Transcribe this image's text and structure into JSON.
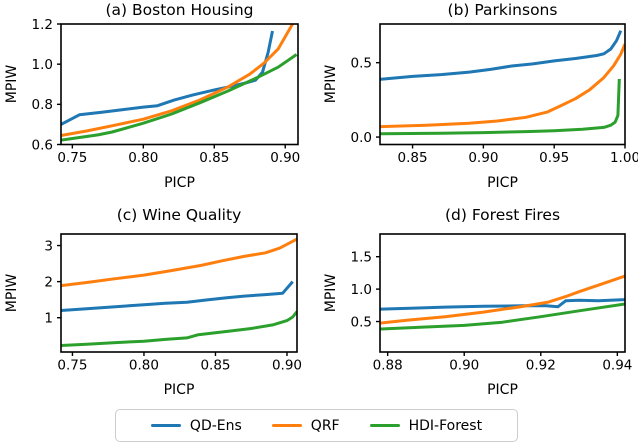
{
  "figure": {
    "background": "#ffffff",
    "series_colors": {
      "QD-Ens": "#1f77b4",
      "QRF": "#ff7f0e",
      "HDI-Forest": "#2ca02c"
    },
    "axis_color": "#000000"
  },
  "legend": {
    "entries": [
      {
        "label": "QD-Ens",
        "color": "#1f77b4"
      },
      {
        "label": "QRF",
        "color": "#ff7f0e"
      },
      {
        "label": "HDI-Forest",
        "color": "#2ca02c"
      }
    ]
  },
  "chart_data": [
    {
      "id": "a",
      "type": "line",
      "title": "(a) Boston Housing",
      "xlabel": "PICP",
      "ylabel": "MPIW",
      "xlim": [
        0.742,
        0.909
      ],
      "ylim": [
        0.6,
        1.2
      ],
      "grid": false,
      "xticks": [
        {
          "v": 0.75,
          "label": "0.75"
        },
        {
          "v": 0.8,
          "label": "0.80"
        },
        {
          "v": 0.85,
          "label": "0.85"
        },
        {
          "v": 0.9,
          "label": "0.90"
        }
      ],
      "yticks": [
        {
          "v": 0.6,
          "label": "0.6"
        },
        {
          "v": 0.8,
          "label": "0.8"
        },
        {
          "v": 1.0,
          "label": "1.0"
        },
        {
          "v": 1.2,
          "label": "1.2"
        }
      ],
      "series": [
        {
          "name": "QD-Ens",
          "points": [
            [
              0.742,
              0.7
            ],
            [
              0.755,
              0.748
            ],
            [
              0.77,
              0.76
            ],
            [
              0.785,
              0.773
            ],
            [
              0.8,
              0.786
            ],
            [
              0.81,
              0.793
            ],
            [
              0.822,
              0.822
            ],
            [
              0.835,
              0.847
            ],
            [
              0.85,
              0.872
            ],
            [
              0.862,
              0.89
            ],
            [
              0.872,
              0.906
            ],
            [
              0.879,
              0.92
            ],
            [
              0.884,
              0.96
            ],
            [
              0.888,
              1.06
            ],
            [
              0.891,
              1.165
            ]
          ]
        },
        {
          "name": "QRF",
          "points": [
            [
              0.742,
              0.645
            ],
            [
              0.76,
              0.667
            ],
            [
              0.78,
              0.696
            ],
            [
              0.8,
              0.726
            ],
            [
              0.82,
              0.768
            ],
            [
              0.84,
              0.822
            ],
            [
              0.86,
              0.888
            ],
            [
              0.875,
              0.95
            ],
            [
              0.885,
              1.005
            ],
            [
              0.895,
              1.075
            ],
            [
              0.906,
              1.21
            ]
          ]
        },
        {
          "name": "HDI-Forest",
          "points": [
            [
              0.742,
              0.622
            ],
            [
              0.755,
              0.635
            ],
            [
              0.768,
              0.648
            ],
            [
              0.778,
              0.662
            ],
            [
              0.8,
              0.706
            ],
            [
              0.82,
              0.752
            ],
            [
              0.84,
              0.808
            ],
            [
              0.86,
              0.868
            ],
            [
              0.88,
              0.932
            ],
            [
              0.895,
              0.985
            ],
            [
              0.908,
              1.048
            ]
          ]
        }
      ]
    },
    {
      "id": "b",
      "type": "line",
      "title": "(b) Parkinsons",
      "xlabel": "PICP",
      "ylabel": "MPIW",
      "xlim": [
        0.827,
        1.0
      ],
      "ylim": [
        -0.05,
        0.76
      ],
      "grid": false,
      "xticks": [
        {
          "v": 0.85,
          "label": "0.85"
        },
        {
          "v": 0.9,
          "label": "0.90"
        },
        {
          "v": 0.95,
          "label": "0.95"
        },
        {
          "v": 1.0,
          "label": "1.00"
        }
      ],
      "yticks": [
        {
          "v": 0.0,
          "label": "0.0"
        },
        {
          "v": 0.5,
          "label": "0.5"
        }
      ],
      "series": [
        {
          "name": "QD-Ens",
          "points": [
            [
              0.827,
              0.388
            ],
            [
              0.85,
              0.408
            ],
            [
              0.87,
              0.42
            ],
            [
              0.89,
              0.437
            ],
            [
              0.905,
              0.455
            ],
            [
              0.92,
              0.478
            ],
            [
              0.935,
              0.492
            ],
            [
              0.95,
              0.512
            ],
            [
              0.965,
              0.528
            ],
            [
              0.98,
              0.548
            ],
            [
              0.985,
              0.56
            ],
            [
              0.99,
              0.592
            ],
            [
              0.994,
              0.648
            ],
            [
              0.997,
              0.715
            ]
          ]
        },
        {
          "name": "QRF",
          "points": [
            [
              0.827,
              0.07
            ],
            [
              0.86,
              0.08
            ],
            [
              0.89,
              0.093
            ],
            [
              0.91,
              0.108
            ],
            [
              0.93,
              0.133
            ],
            [
              0.945,
              0.168
            ],
            [
              0.955,
              0.212
            ],
            [
              0.965,
              0.258
            ],
            [
              0.975,
              0.318
            ],
            [
              0.985,
              0.4
            ],
            [
              0.992,
              0.48
            ],
            [
              0.997,
              0.558
            ],
            [
              1.0,
              0.625
            ]
          ]
        },
        {
          "name": "HDI-Forest",
          "points": [
            [
              0.827,
              0.022
            ],
            [
              0.87,
              0.026
            ],
            [
              0.9,
              0.03
            ],
            [
              0.93,
              0.037
            ],
            [
              0.95,
              0.043
            ],
            [
              0.97,
              0.052
            ],
            [
              0.985,
              0.065
            ],
            [
              0.99,
              0.08
            ],
            [
              0.993,
              0.1
            ],
            [
              0.995,
              0.145
            ],
            [
              0.996,
              0.39
            ]
          ]
        }
      ]
    },
    {
      "id": "c",
      "type": "line",
      "title": "(c) Wine Quality",
      "xlabel": "PICP",
      "ylabel": "MPIW",
      "xlim": [
        0.742,
        0.907
      ],
      "ylim": [
        0.05,
        3.32
      ],
      "grid": false,
      "xticks": [
        {
          "v": 0.75,
          "label": "0.75"
        },
        {
          "v": 0.8,
          "label": "0.80"
        },
        {
          "v": 0.85,
          "label": "0.85"
        },
        {
          "v": 0.9,
          "label": "0.90"
        }
      ],
      "yticks": [
        {
          "v": 1,
          "label": "1"
        },
        {
          "v": 2,
          "label": "2"
        },
        {
          "v": 3,
          "label": "3"
        }
      ],
      "series": [
        {
          "name": "QD-Ens",
          "points": [
            [
              0.742,
              1.2
            ],
            [
              0.76,
              1.25
            ],
            [
              0.78,
              1.305
            ],
            [
              0.8,
              1.36
            ],
            [
              0.815,
              1.4
            ],
            [
              0.83,
              1.43
            ],
            [
              0.845,
              1.5
            ],
            [
              0.858,
              1.555
            ],
            [
              0.87,
              1.6
            ],
            [
              0.885,
              1.64
            ],
            [
              0.897,
              1.68
            ],
            [
              0.904,
              2.0
            ]
          ]
        },
        {
          "name": "QRF",
          "points": [
            [
              0.742,
              1.89
            ],
            [
              0.76,
              1.975
            ],
            [
              0.78,
              2.08
            ],
            [
              0.8,
              2.18
            ],
            [
              0.82,
              2.31
            ],
            [
              0.84,
              2.45
            ],
            [
              0.855,
              2.58
            ],
            [
              0.87,
              2.7
            ],
            [
              0.885,
              2.8
            ],
            [
              0.895,
              2.93
            ],
            [
              0.907,
              3.18
            ]
          ]
        },
        {
          "name": "HDI-Forest",
          "points": [
            [
              0.742,
              0.23
            ],
            [
              0.76,
              0.265
            ],
            [
              0.78,
              0.31
            ],
            [
              0.8,
              0.35
            ],
            [
              0.815,
              0.4
            ],
            [
              0.83,
              0.44
            ],
            [
              0.838,
              0.53
            ],
            [
              0.85,
              0.585
            ],
            [
              0.862,
              0.64
            ],
            [
              0.875,
              0.7
            ],
            [
              0.89,
              0.8
            ],
            [
              0.9,
              0.92
            ],
            [
              0.904,
              1.02
            ],
            [
              0.907,
              1.17
            ]
          ]
        }
      ]
    },
    {
      "id": "d",
      "type": "line",
      "title": "(d) Forest Fires",
      "xlabel": "PICP",
      "ylabel": "MPIW",
      "xlim": [
        0.878,
        0.942
      ],
      "ylim": [
        0.03,
        1.85
      ],
      "grid": false,
      "xticks": [
        {
          "v": 0.88,
          "label": "0.88"
        },
        {
          "v": 0.9,
          "label": "0.90"
        },
        {
          "v": 0.92,
          "label": "0.92"
        },
        {
          "v": 0.94,
          "label": "0.94"
        }
      ],
      "yticks": [
        {
          "v": 0.5,
          "label": "0.5"
        },
        {
          "v": 1.0,
          "label": "1.0"
        },
        {
          "v": 1.5,
          "label": "1.5"
        }
      ],
      "series": [
        {
          "name": "QD-Ens",
          "points": [
            [
              0.878,
              0.69
            ],
            [
              0.886,
              0.705
            ],
            [
              0.895,
              0.722
            ],
            [
              0.905,
              0.735
            ],
            [
              0.915,
              0.742
            ],
            [
              0.921,
              0.745
            ],
            [
              0.9245,
              0.728
            ],
            [
              0.9265,
              0.82
            ],
            [
              0.93,
              0.828
            ],
            [
              0.935,
              0.822
            ],
            [
              0.942,
              0.838
            ]
          ]
        },
        {
          "name": "QRF",
          "points": [
            [
              0.878,
              0.475
            ],
            [
              0.885,
              0.52
            ],
            [
              0.895,
              0.575
            ],
            [
              0.905,
              0.645
            ],
            [
              0.915,
              0.73
            ],
            [
              0.922,
              0.8
            ],
            [
              0.927,
              0.895
            ],
            [
              0.93,
              0.96
            ],
            [
              0.936,
              1.08
            ],
            [
              0.942,
              1.2
            ]
          ]
        },
        {
          "name": "HDI-Forest",
          "points": [
            [
              0.878,
              0.385
            ],
            [
              0.89,
              0.415
            ],
            [
              0.9,
              0.44
            ],
            [
              0.91,
              0.49
            ],
            [
              0.92,
              0.575
            ],
            [
              0.93,
              0.665
            ],
            [
              0.942,
              0.77
            ]
          ]
        }
      ]
    }
  ]
}
